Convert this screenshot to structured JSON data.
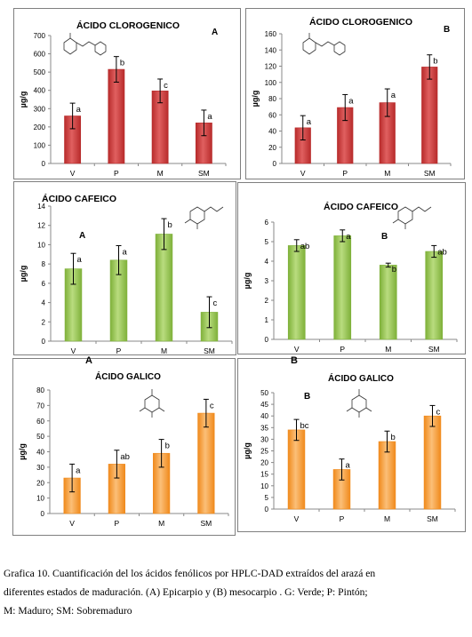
{
  "caption": {
    "line1": "Grafica 10. Cuantificación del los ácidos fenólicos por HPLC-DAD extraídos del arazá en",
    "line2": "diferentes estados de maduración. (A)  Epicarpio y (B) mesocarpio . G: Verde; P: Pintón;",
    "line3": "M: Maduro; SM: Sobremaduro"
  },
  "outer_labels": {
    "a": "A",
    "b": "B"
  },
  "colors": {
    "red": "#b82b2b",
    "red_light": "#e06060",
    "green": "#7fb13a",
    "green_light": "#b9dc7f",
    "orange": "#f08a1c",
    "orange_light": "#fbbf78"
  },
  "chart_data": [
    {
      "id": "clorogenico-A",
      "type": "bar",
      "title": "ÁCIDO CLOROGENICO",
      "panel_letter": "A",
      "ylabel": "µg/g",
      "ylim": [
        0,
        700
      ],
      "yticks": [
        0,
        100,
        200,
        300,
        400,
        500,
        600,
        700
      ],
      "categories": [
        "V",
        "P",
        "M",
        "SM"
      ],
      "values": [
        260,
        515,
        397,
        222
      ],
      "errors": [
        70,
        70,
        65,
        70
      ],
      "letters": [
        "a",
        "b",
        "c",
        "a"
      ],
      "color": "red",
      "icon": "chlorogenic-acid-structure-icon"
    },
    {
      "id": "clorogenico-B",
      "type": "bar",
      "title": "ÁCIDO CLOROGENICO",
      "panel_letter": "B",
      "ylabel": "µg/g",
      "ylim": [
        0,
        160
      ],
      "yticks": [
        0,
        20,
        40,
        60,
        80,
        100,
        120,
        140,
        160
      ],
      "categories": [
        "V",
        "P",
        "M",
        "SM"
      ],
      "values": [
        44,
        69,
        75,
        119
      ],
      "errors": [
        15,
        16,
        17,
        15
      ],
      "letters": [
        "a",
        "a",
        "a",
        "b"
      ],
      "color": "red",
      "icon": "chlorogenic-acid-structure-icon"
    },
    {
      "id": "cafeico-A",
      "type": "bar",
      "title": "ÁCIDO CAFEICO",
      "panel_letter": "A",
      "ylabel": "µg/g",
      "ylim": [
        0,
        14
      ],
      "yticks": [
        0,
        2,
        4,
        6,
        8,
        10,
        12,
        14
      ],
      "categories": [
        "V",
        "P",
        "M",
        "SM"
      ],
      "values": [
        7.5,
        8.4,
        11.1,
        3.0
      ],
      "errors": [
        1.6,
        1.5,
        1.6,
        1.6
      ],
      "letters": [
        "a",
        "a",
        "b",
        "c"
      ],
      "color": "green",
      "icon": "caffeic-acid-structure-icon"
    },
    {
      "id": "cafeico-B",
      "type": "bar",
      "title": "ÁCIDO CAFEICO",
      "panel_letter": "B",
      "ylabel": "µg/g",
      "ylim": [
        0,
        6
      ],
      "yticks": [
        0,
        1,
        2,
        3,
        4,
        5,
        6
      ],
      "categories": [
        "V",
        "P",
        "M",
        "SM"
      ],
      "values": [
        4.8,
        5.3,
        3.8,
        4.5
      ],
      "errors": [
        0.3,
        0.3,
        0.1,
        0.3
      ],
      "letters": [
        "ab",
        "a",
        "b",
        "ab"
      ],
      "color": "green",
      "icon": "caffeic-acid-structure-icon"
    },
    {
      "id": "galico-A",
      "type": "bar",
      "title": "ÁCIDO GALICO",
      "panel_letter": "",
      "ylabel": "µg/g",
      "ylim": [
        0,
        80
      ],
      "yticks": [
        0,
        10,
        20,
        30,
        40,
        50,
        60,
        70,
        80
      ],
      "categories": [
        "V",
        "P",
        "M",
        "SM"
      ],
      "values": [
        23,
        32,
        39,
        65
      ],
      "errors": [
        9,
        9,
        9,
        9
      ],
      "letters": [
        "a",
        "ab",
        "b",
        "c"
      ],
      "color": "orange",
      "icon": "gallic-acid-structure-icon"
    },
    {
      "id": "galico-B",
      "type": "bar",
      "title": "ÁCIDO GALICO",
      "panel_letter": "B",
      "ylabel": "µg/g",
      "ylim": [
        0,
        50
      ],
      "yticks": [
        0,
        5,
        10,
        15,
        20,
        25,
        30,
        35,
        40,
        45,
        50
      ],
      "categories": [
        "V",
        "P",
        "M",
        "SM"
      ],
      "values": [
        34,
        17,
        29,
        40
      ],
      "errors": [
        4.5,
        4.5,
        4.5,
        4.5
      ],
      "letters": [
        "bc",
        "a",
        "b",
        "c"
      ],
      "color": "orange",
      "icon": "gallic-acid-structure-icon"
    }
  ]
}
